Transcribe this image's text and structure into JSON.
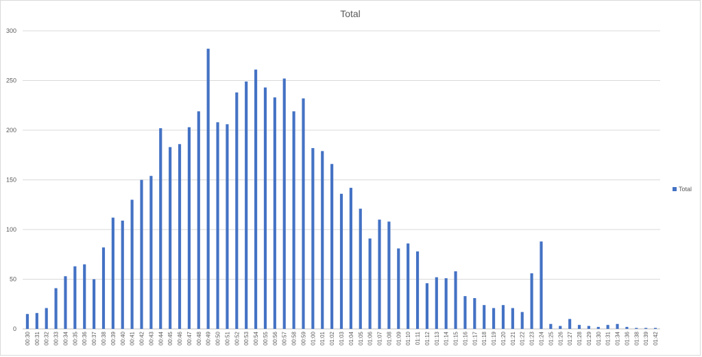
{
  "chart_data": {
    "type": "bar",
    "title": "Total",
    "xlabel": "",
    "ylabel": "",
    "ylim": [
      0,
      300
    ],
    "yticks": [
      0,
      50,
      100,
      150,
      200,
      250,
      300
    ],
    "grid": true,
    "legend_position": "right",
    "categories": [
      "00:30",
      "00:31",
      "00:32",
      "00:33",
      "00:34",
      "00:35",
      "00:36",
      "00:37",
      "00:38",
      "00:39",
      "00:40",
      "00:41",
      "00:42",
      "00:43",
      "00:44",
      "00:45",
      "00:46",
      "00:47",
      "00:48",
      "00:49",
      "00:50",
      "00:51",
      "00:52",
      "00:53",
      "00:54",
      "00:55",
      "00:56",
      "00:57",
      "00:58",
      "00:59",
      "01:00",
      "01:01",
      "01:02",
      "01:03",
      "01:04",
      "01:05",
      "01:06",
      "01:07",
      "01:08",
      "01:09",
      "01:10",
      "01:11",
      "01:12",
      "01:13",
      "01:14",
      "01:15",
      "01:16",
      "01:17",
      "01:18",
      "01:19",
      "01:20",
      "01:21",
      "01:22",
      "01:23",
      "01:24",
      "01:25",
      "01:26",
      "01:27",
      "01:28",
      "01:29",
      "01:30",
      "01:31",
      "01:34",
      "01:36",
      "01:38",
      "01:39",
      "01:42"
    ],
    "series": [
      {
        "name": "Total",
        "color": "#4472c4",
        "values": [
          15,
          16,
          21,
          41,
          53,
          63,
          65,
          50,
          82,
          112,
          109,
          130,
          150,
          154,
          202,
          183,
          186,
          203,
          219,
          282,
          208,
          206,
          238,
          249,
          261,
          243,
          233,
          252,
          219,
          232,
          182,
          179,
          166,
          136,
          142,
          121,
          91,
          110,
          108,
          81,
          86,
          78,
          46,
          52,
          51,
          58,
          33,
          31,
          24,
          21,
          24,
          21,
          17,
          56,
          88,
          5,
          3,
          10,
          4,
          3,
          2,
          4,
          5,
          2,
          1,
          1,
          1
        ]
      }
    ]
  },
  "style": {
    "grid_color": "#d9d9d9",
    "axis_color": "#bfbfbf",
    "text_color": "#595959",
    "title_color": "#595959"
  }
}
